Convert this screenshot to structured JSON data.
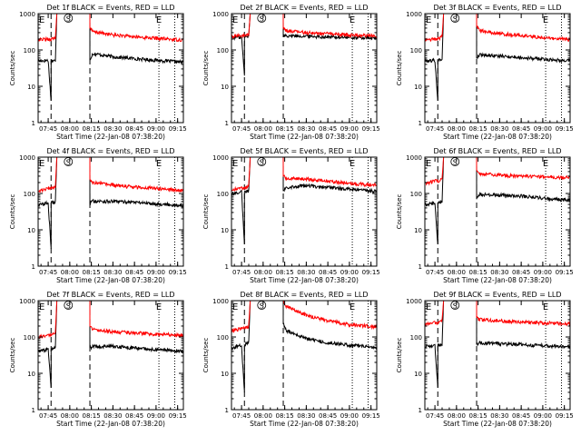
{
  "figure": {
    "shared": {
      "xlabel": "Start Time (22-Jan-08 07:38:20)",
      "ylabel": "Counts/sec",
      "x_ticks": [
        "07:45",
        "08:00",
        "08:15",
        "08:30",
        "08:45",
        "09:00",
        "09:15"
      ],
      "y_ticks": [
        "1",
        "10",
        "100",
        "1000"
      ],
      "markers": {
        "eclipse_start": "E",
        "saa": "S",
        "eclipse_end": "E"
      },
      "colors": {
        "events": "#000000",
        "lld": "#ff0000",
        "axes": "#000000",
        "background": "#ffffff"
      }
    }
  },
  "chart_data": [
    {
      "type": "line",
      "title": "Det 1f BLACK = Events, RED = LLD",
      "xlabel": "Start Time (22-Jan-08 07:38:20)",
      "ylabel": "Counts/sec",
      "x_unit": "time",
      "xlim": [
        "07:38",
        "09:19"
      ],
      "y_scale": "log",
      "ylim": [
        1,
        1000
      ],
      "vlines_dashed": [
        "07:47",
        "08:14"
      ],
      "vlines_dotted": [
        "09:02",
        "09:13"
      ],
      "series": [
        {
          "name": "Events",
          "color": "#000000",
          "x": [
            "07:38",
            "07:45",
            "07:47",
            "07:47",
            "07:50",
            "07:51",
            "07:52",
            "08:14",
            "08:14",
            "08:16",
            "08:30",
            "08:45",
            "09:00",
            "09:13",
            "09:19"
          ],
          "y": [
            50,
            52,
            4,
            50,
            50,
            1000,
            1000,
            1000,
            55,
            80,
            65,
            58,
            52,
            48,
            46
          ]
        },
        {
          "name": "LLD",
          "color": "#ff0000",
          "x": [
            "07:38",
            "07:45",
            "07:47",
            "07:47",
            "07:50",
            "07:51",
            "07:52",
            "08:14",
            "08:14",
            "08:16",
            "08:30",
            "08:45",
            "09:00",
            "09:13",
            "09:19"
          ],
          "y": [
            190,
            200,
            200,
            200,
            220,
            1000,
            1000,
            1000,
            400,
            320,
            260,
            230,
            210,
            195,
            190
          ]
        }
      ]
    },
    {
      "type": "line",
      "title": "Det 2f BLACK = Events, RED = LLD",
      "xlabel": "Start Time (22-Jan-08 07:38:20)",
      "ylabel": "Counts/sec",
      "x_unit": "time",
      "xlim": [
        "07:38",
        "09:19"
      ],
      "y_scale": "log",
      "ylim": [
        1,
        1000
      ],
      "vlines_dashed": [
        "07:47",
        "08:14"
      ],
      "vlines_dotted": [
        "09:02",
        "09:13"
      ],
      "series": [
        {
          "name": "Events",
          "color": "#000000",
          "x": [
            "07:38",
            "07:45",
            "07:47",
            "07:47",
            "07:50",
            "07:51",
            "07:52",
            "08:14",
            "08:14",
            "08:16",
            "08:30",
            "08:45",
            "09:00",
            "09:13",
            "09:19"
          ],
          "y": [
            220,
            230,
            20,
            230,
            240,
            1000,
            1000,
            1000,
            250,
            250,
            240,
            230,
            220,
            215,
            210
          ]
        },
        {
          "name": "LLD",
          "color": "#ff0000",
          "x": [
            "07:38",
            "07:45",
            "07:47",
            "07:47",
            "07:50",
            "07:51",
            "07:52",
            "08:14",
            "08:14",
            "08:16",
            "08:30",
            "08:45",
            "09:00",
            "09:13",
            "09:19"
          ],
          "y": [
            240,
            250,
            250,
            250,
            260,
            1000,
            1000,
            1000,
            400,
            340,
            300,
            280,
            260,
            250,
            245
          ]
        }
      ]
    },
    {
      "type": "line",
      "title": "Det 3f BLACK = Events, RED = LLD",
      "xlabel": "Start Time (22-Jan-08 07:38:20)",
      "ylabel": "Counts/sec",
      "x_unit": "time",
      "xlim": [
        "07:38",
        "09:19"
      ],
      "y_scale": "log",
      "ylim": [
        1,
        1000
      ],
      "vlines_dashed": [
        "07:47",
        "08:14"
      ],
      "vlines_dotted": [
        "09:02",
        "09:13"
      ],
      "series": [
        {
          "name": "Events",
          "color": "#000000",
          "x": [
            "07:38",
            "07:45",
            "07:47",
            "07:47",
            "07:50",
            "07:51",
            "07:52",
            "08:14",
            "08:14",
            "08:16",
            "08:30",
            "08:45",
            "09:00",
            "09:13",
            "09:19"
          ],
          "y": [
            50,
            52,
            4,
            52,
            55,
            1000,
            1000,
            1000,
            60,
            75,
            68,
            62,
            56,
            52,
            50
          ]
        },
        {
          "name": "LLD",
          "color": "#ff0000",
          "x": [
            "07:38",
            "07:45",
            "07:47",
            "07:47",
            "07:50",
            "07:51",
            "07:52",
            "08:14",
            "08:14",
            "08:16",
            "08:30",
            "08:45",
            "09:00",
            "09:13",
            "09:19"
          ],
          "y": [
            190,
            200,
            200,
            200,
            230,
            1000,
            1000,
            1000,
            450,
            350,
            280,
            250,
            220,
            200,
            190
          ]
        }
      ]
    },
    {
      "type": "line",
      "title": "Det 4f BLACK = Events, RED = LLD",
      "xlabel": "Start Time (22-Jan-08 07:38:20)",
      "ylabel": "Counts/sec",
      "x_unit": "time",
      "xlim": [
        "07:38",
        "09:19"
      ],
      "y_scale": "log",
      "ylim": [
        1,
        1000
      ],
      "vlines_dashed": [
        "07:47",
        "08:14"
      ],
      "vlines_dotted": [
        "09:02",
        "09:13"
      ],
      "series": [
        {
          "name": "Events",
          "color": "#000000",
          "x": [
            "07:38",
            "07:45",
            "07:47",
            "07:47",
            "07:50",
            "07:51",
            "07:52",
            "08:14",
            "08:14",
            "08:16",
            "08:30",
            "08:45",
            "09:00",
            "09:13",
            "09:19"
          ],
          "y": [
            48,
            55,
            3,
            55,
            60,
            1000,
            1000,
            1000,
            55,
            62,
            60,
            58,
            52,
            48,
            46
          ]
        },
        {
          "name": "LLD",
          "color": "#ff0000",
          "x": [
            "07:38",
            "07:45",
            "07:47",
            "07:47",
            "07:50",
            "07:51",
            "07:52",
            "08:14",
            "08:14",
            "08:16",
            "08:30",
            "08:45",
            "09:00",
            "09:13",
            "09:19"
          ],
          "y": [
            110,
            140,
            140,
            140,
            160,
            1000,
            1000,
            1000,
            250,
            200,
            170,
            150,
            140,
            125,
            120
          ]
        }
      ]
    },
    {
      "type": "line",
      "title": "Det 5f BLACK = Events, RED = LLD",
      "xlabel": "Start Time (22-Jan-08 07:38:20)",
      "ylabel": "Counts/sec",
      "x_unit": "time",
      "xlim": [
        "07:38",
        "09:19"
      ],
      "y_scale": "log",
      "ylim": [
        1,
        1000
      ],
      "vlines_dashed": [
        "07:47",
        "08:14"
      ],
      "vlines_dotted": [
        "09:02",
        "09:13"
      ],
      "series": [
        {
          "name": "Events",
          "color": "#000000",
          "x": [
            "07:38",
            "07:45",
            "07:47",
            "07:47",
            "07:50",
            "07:51",
            "07:52",
            "08:14",
            "08:14",
            "08:16",
            "08:30",
            "08:45",
            "09:00",
            "09:13",
            "09:19"
          ],
          "y": [
            100,
            110,
            4,
            110,
            120,
            1000,
            1000,
            1000,
            120,
            150,
            165,
            150,
            130,
            120,
            115
          ]
        },
        {
          "name": "LLD",
          "color": "#ff0000",
          "x": [
            "07:38",
            "07:45",
            "07:47",
            "07:47",
            "07:50",
            "07:51",
            "07:52",
            "08:14",
            "08:14",
            "08:16",
            "08:30",
            "08:45",
            "09:00",
            "09:13",
            "09:19"
          ],
          "y": [
            130,
            140,
            140,
            140,
            160,
            1000,
            1000,
            1000,
            300,
            260,
            250,
            220,
            190,
            175,
            170
          ]
        }
      ]
    },
    {
      "type": "line",
      "title": "Det 6f BLACK = Events, RED = LLD",
      "xlabel": "Start Time (22-Jan-08 07:38:20)",
      "ylabel": "Counts/sec",
      "x_unit": "time",
      "xlim": [
        "07:38",
        "09:19"
      ],
      "y_scale": "log",
      "ylim": [
        1,
        1000
      ],
      "vlines_dashed": [
        "07:47",
        "08:14"
      ],
      "vlines_dotted": [
        "09:02",
        "09:13"
      ],
      "series": [
        {
          "name": "Events",
          "color": "#000000",
          "x": [
            "07:38",
            "07:45",
            "07:47",
            "07:47",
            "07:50",
            "07:51",
            "07:52",
            "08:14",
            "08:14",
            "08:16",
            "08:30",
            "08:45",
            "09:00",
            "09:13",
            "09:19"
          ],
          "y": [
            50,
            55,
            4,
            55,
            60,
            1000,
            1000,
            1000,
            70,
            95,
            90,
            85,
            75,
            68,
            65
          ]
        },
        {
          "name": "LLD",
          "color": "#ff0000",
          "x": [
            "07:38",
            "07:45",
            "07:47",
            "07:47",
            "07:50",
            "07:51",
            "07:52",
            "08:14",
            "08:14",
            "08:16",
            "08:30",
            "08:45",
            "09:00",
            "09:13",
            "09:19"
          ],
          "y": [
            190,
            220,
            220,
            220,
            250,
            1000,
            1000,
            1000,
            450,
            360,
            320,
            300,
            290,
            280,
            270
          ]
        }
      ]
    },
    {
      "type": "line",
      "title": "Det 7f BLACK = Events, RED = LLD",
      "xlabel": "Start Time (22-Jan-08 07:38:20)",
      "ylabel": "Counts/sec",
      "x_unit": "time",
      "xlim": [
        "07:38",
        "09:19"
      ],
      "y_scale": "log",
      "ylim": [
        1,
        1000
      ],
      "vlines_dashed": [
        "07:47",
        "08:14"
      ],
      "vlines_dotted": [
        "09:02",
        "09:13"
      ],
      "series": [
        {
          "name": "Events",
          "color": "#000000",
          "x": [
            "07:38",
            "07:45",
            "07:47",
            "07:47",
            "07:50",
            "07:51",
            "07:52",
            "08:14",
            "08:14",
            "08:16",
            "08:30",
            "08:45",
            "09:00",
            "09:13",
            "09:19"
          ],
          "y": [
            40,
            45,
            4,
            45,
            50,
            1000,
            1000,
            1000,
            50,
            55,
            55,
            50,
            45,
            42,
            40
          ]
        },
        {
          "name": "LLD",
          "color": "#ff0000",
          "x": [
            "07:38",
            "07:45",
            "07:47",
            "07:47",
            "07:50",
            "07:51",
            "07:52",
            "08:14",
            "08:14",
            "08:16",
            "08:30",
            "08:45",
            "09:00",
            "09:13",
            "09:19"
          ],
          "y": [
            100,
            110,
            110,
            110,
            130,
            1000,
            1000,
            1000,
            200,
            160,
            140,
            130,
            120,
            115,
            110
          ]
        }
      ]
    },
    {
      "type": "line",
      "title": "Det 8f BLACK = Events, RED = LLD",
      "xlabel": "Start Time (22-Jan-08 07:38:20)",
      "ylabel": "Counts/sec",
      "x_unit": "time",
      "xlim": [
        "07:38",
        "09:19"
      ],
      "y_scale": "log",
      "ylim": [
        1,
        1000
      ],
      "vlines_dashed": [
        "07:47",
        "08:14"
      ],
      "vlines_dotted": [
        "09:02",
        "09:13"
      ],
      "series": [
        {
          "name": "Events",
          "color": "#000000",
          "x": [
            "07:38",
            "07:45",
            "07:47",
            "07:47",
            "07:50",
            "07:51",
            "07:52",
            "08:14",
            "08:14",
            "08:16",
            "08:30",
            "08:45",
            "09:00",
            "09:13",
            "09:19"
          ],
          "y": [
            50,
            60,
            3,
            60,
            70,
            1000,
            1000,
            1000,
            250,
            150,
            90,
            70,
            60,
            55,
            50
          ]
        },
        {
          "name": "LLD",
          "color": "#ff0000",
          "x": [
            "07:38",
            "07:45",
            "07:47",
            "07:47",
            "07:50",
            "07:51",
            "07:52",
            "08:14",
            "08:14",
            "08:16",
            "08:30",
            "08:45",
            "09:00",
            "09:13",
            "09:19"
          ],
          "y": [
            150,
            170,
            170,
            170,
            200,
            1000,
            1000,
            1000,
            1000,
            700,
            400,
            280,
            220,
            200,
            190
          ]
        }
      ]
    },
    {
      "type": "line",
      "title": "Det 9f BLACK = Events, RED = LLD",
      "xlabel": "Start Time (22-Jan-08 07:38:20)",
      "ylabel": "Counts/sec",
      "x_unit": "time",
      "xlim": [
        "07:38",
        "09:19"
      ],
      "y_scale": "log",
      "ylim": [
        1,
        1000
      ],
      "vlines_dashed": [
        "07:47",
        "08:14"
      ],
      "vlines_dotted": [
        "09:02",
        "09:13"
      ],
      "series": [
        {
          "name": "Events",
          "color": "#000000",
          "x": [
            "07:38",
            "07:45",
            "07:47",
            "07:47",
            "07:50",
            "07:51",
            "07:52",
            "08:14",
            "08:14",
            "08:16",
            "08:30",
            "08:45",
            "09:00",
            "09:13",
            "09:19"
          ],
          "y": [
            55,
            60,
            4,
            60,
            65,
            1000,
            1000,
            1000,
            65,
            70,
            65,
            62,
            58,
            55,
            52
          ]
        },
        {
          "name": "LLD",
          "color": "#ff0000",
          "x": [
            "07:38",
            "07:45",
            "07:47",
            "07:47",
            "07:50",
            "07:51",
            "07:52",
            "08:14",
            "08:14",
            "08:16",
            "08:30",
            "08:45",
            "09:00",
            "09:13",
            "09:19"
          ],
          "y": [
            220,
            250,
            250,
            250,
            280,
            1000,
            1000,
            1000,
            350,
            300,
            280,
            260,
            245,
            235,
            230
          ]
        }
      ]
    }
  ]
}
